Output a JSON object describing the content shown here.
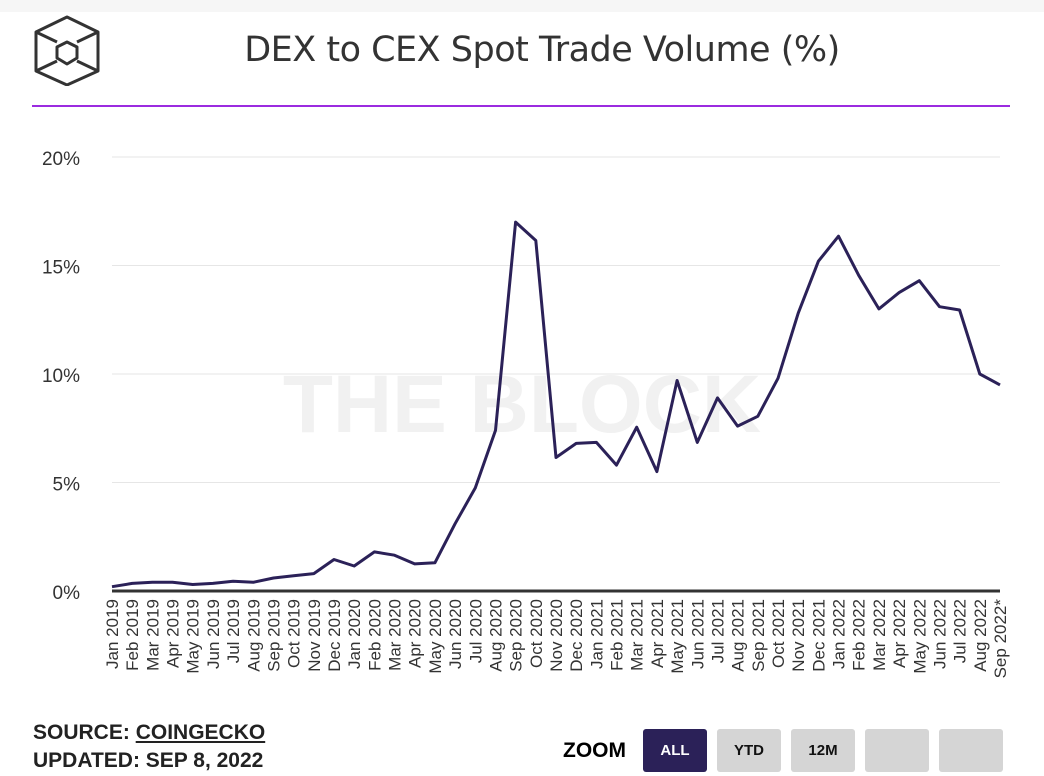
{
  "header": {
    "title": "DEX to CEX Spot Trade Volume (%)",
    "logo": "the-block-cube-logo"
  },
  "watermark": "THE BLOCK",
  "footer": {
    "source_label": "SOURCE:",
    "source_name": "COINGECKO",
    "updated_label": "UPDATED:",
    "updated_date": "SEP 8, 2022"
  },
  "zoom": {
    "label": "ZOOM",
    "buttons": [
      "ALL",
      "YTD",
      "12M",
      "",
      ""
    ],
    "active": "ALL"
  },
  "colors": {
    "line": "#2b2158",
    "accent_rule": "#9b2be0",
    "active_button": "#2b2158",
    "button": "#d5d5d5"
  },
  "chart_data": {
    "type": "line",
    "title": "DEX to CEX Spot Trade Volume (%)",
    "xlabel": "",
    "ylabel": "",
    "ylim": [
      0,
      20
    ],
    "yticks": [
      "0%",
      "5%",
      "10%",
      "15%",
      "20%"
    ],
    "ytick_values": [
      0,
      5,
      10,
      15,
      20
    ],
    "grid": true,
    "categories": [
      "Jan 2019",
      "Feb 2019",
      "Mar 2019",
      "Apr 2019",
      "May 2019",
      "Jun 2019",
      "Jul 2019",
      "Aug 2019",
      "Sep 2019",
      "Oct 2019",
      "Nov 2019",
      "Dec 2019",
      "Jan 2020",
      "Feb 2020",
      "Mar 2020",
      "Apr 2020",
      "May 2020",
      "Jun 2020",
      "Jul 2020",
      "Aug 2020",
      "Sep 2020",
      "Oct 2020",
      "Nov 2020",
      "Dec 2020",
      "Jan 2021",
      "Feb 2021",
      "Mar 2021",
      "Apr 2021",
      "May 2021",
      "Jun 2021",
      "Jul 2021",
      "Aug 2021",
      "Sep 2021",
      "Oct 2021",
      "Nov 2021",
      "Dec 2021",
      "Jan 2022",
      "Feb 2022",
      "Mar 2022",
      "Apr 2022",
      "May 2022",
      "Jun 2022",
      "Jul 2022",
      "Aug 2022",
      "Sep 2022*"
    ],
    "values": [
      0.2,
      0.35,
      0.4,
      0.4,
      0.3,
      0.35,
      0.45,
      0.4,
      0.6,
      0.7,
      0.8,
      1.45,
      1.15,
      1.8,
      1.65,
      1.25,
      1.3,
      3.1,
      4.75,
      7.4,
      17.0,
      16.15,
      6.15,
      6.8,
      6.85,
      5.8,
      7.55,
      5.5,
      9.7,
      6.85,
      8.9,
      7.6,
      8.05,
      9.8,
      12.8,
      15.2,
      16.35,
      14.55,
      13.0,
      13.75,
      14.3,
      13.1,
      12.95,
      10.0,
      9.5
    ]
  }
}
